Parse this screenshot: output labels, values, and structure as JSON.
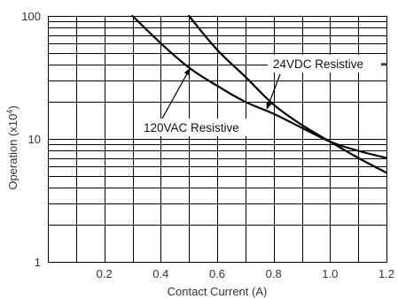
{
  "chart_data": {
    "type": "line",
    "xlabel": "Contact Current (A)",
    "ylabel": "Operation (x10",
    "ylabel_exponent": "4",
    "ylabel_close": ")",
    "y_scale": "log",
    "xlim": [
      0,
      1.2
    ],
    "ylim": [
      1,
      100
    ],
    "x_ticks": [
      0.2,
      0.4,
      0.6,
      0.8,
      1.0,
      1.2
    ],
    "x_tick_labels": [
      "0.2",
      "0.4",
      "0.6",
      "0.8",
      "1.0",
      "1.2"
    ],
    "y_ticks": [
      1,
      10,
      100
    ],
    "y_tick_labels": [
      "1",
      "10",
      "100"
    ],
    "x_grid": [
      0.1,
      0.2,
      0.3,
      0.4,
      0.5,
      0.6,
      0.7,
      0.8,
      0.9,
      1.0,
      1.1
    ],
    "y_grid": [
      2,
      3,
      4,
      5,
      6,
      7,
      8,
      9,
      10,
      20,
      30,
      40,
      50,
      60,
      70,
      80,
      90
    ],
    "grid": true,
    "series": [
      {
        "name": "120VAC Resistive",
        "x": [
          0.3,
          0.4,
          0.5,
          0.6,
          0.7,
          0.8,
          0.9,
          1.0,
          1.1,
          1.2
        ],
        "y": [
          100,
          60,
          38,
          27,
          20,
          16,
          12.3,
          9.5,
          8.0,
          7.0
        ]
      },
      {
        "name": "24VDC Resistive",
        "x": [
          0.5,
          0.6,
          0.7,
          0.8,
          0.9,
          1.0,
          1.1,
          1.2
        ],
        "y": [
          100,
          53,
          32,
          19,
          13,
          9.5,
          7.0,
          5.3
        ]
      }
    ],
    "annotations": [
      {
        "text": "24VDC Resistive",
        "series": 1,
        "arrow_to": [
          0.77,
          17
        ]
      },
      {
        "text": "120VAC Resistive",
        "series": 0,
        "arrow_to": [
          0.51,
          40
        ]
      }
    ]
  }
}
